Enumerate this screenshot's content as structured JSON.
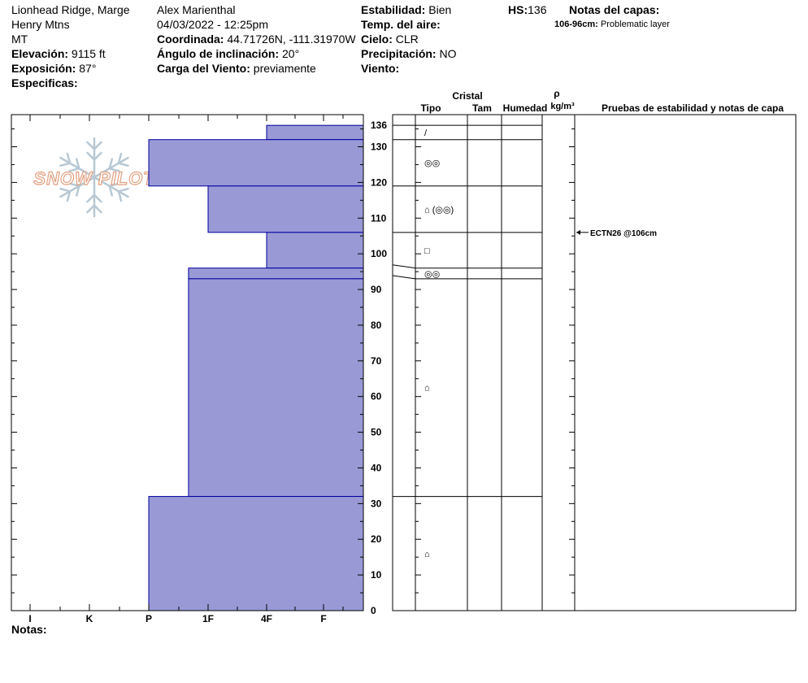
{
  "header": {
    "location": "Lionhead Ridge, Marge",
    "range": "Henry Mtns",
    "state": "MT",
    "elevation_label": "Elevación:",
    "elevation": "9115 ft",
    "aspect_label": "Exposición:",
    "aspect": "87°",
    "specifics_label": "Especificas:",
    "observer": "Alex Marienthal",
    "datetime": "04/03/2022 - 12:25pm",
    "coord_label": "Coordinada:",
    "coord": "44.71726N, -111.31970W",
    "slope_label": "Ángulo de inclinación:",
    "slope": "20°",
    "wind_load_label": "Carga del Viento:",
    "wind_load": "previamente",
    "stability_label": "Estabilidad:",
    "stability": "Bien",
    "air_temp_label": "Temp. del aire:",
    "air_temp": "",
    "sky_label": "Cielo:",
    "sky": "CLR",
    "precip_label": "Precipitación:",
    "precip": "NO",
    "wind_label": "Viento:",
    "wind": "",
    "hs_label": "HS:",
    "hs": "136",
    "layer_notes_label": "Notas del capas:",
    "layer_note_range": "106-96cm:",
    "layer_note_text": "Problematic layer"
  },
  "notes_label": "Notas:",
  "logo_text": "SNOW PILOT",
  "columns": {
    "cristal": "Cristal",
    "tipo": "Tipo",
    "tam": "Tam",
    "humedad": "Humedad",
    "rho": "ρ",
    "density_unit": "kg/m³",
    "tests": "Pruebas de estabilidad y notas de capa"
  },
  "colors": {
    "hardness_fill": "#9999d6",
    "hardness_stroke": "#0000a0",
    "logo": "#e0a080",
    "snowflake": "#b8c8d4"
  },
  "chart_data": {
    "type": "bar",
    "orientation": "horizontal-profile",
    "hardness_categories": [
      "I",
      "K",
      "P",
      "1F",
      "4F",
      "F"
    ],
    "depth_ticks": [
      0,
      10,
      20,
      30,
      40,
      50,
      60,
      70,
      80,
      90,
      100,
      110,
      120,
      130,
      136
    ],
    "ylim": [
      0,
      136
    ],
    "layers": [
      {
        "top": 136,
        "bottom": 132,
        "hardness": 4.0,
        "crystal": "/"
      },
      {
        "top": 132,
        "bottom": 119,
        "hardness": 2.0,
        "crystal": "◎◎"
      },
      {
        "top": 119,
        "bottom": 106,
        "hardness": 3.0,
        "crystal": "⌂ (◎◎)"
      },
      {
        "top": 106,
        "bottom": 96,
        "hardness": 4.0,
        "crystal": "□"
      },
      {
        "top": 96,
        "bottom": 93,
        "hardness": 2.67,
        "crystal": "◎◎"
      },
      {
        "top": 93,
        "bottom": 32,
        "hardness": 2.67,
        "crystal": "⌂"
      },
      {
        "top": 32,
        "bottom": 0,
        "hardness": 2.0,
        "crystal": "⌂"
      }
    ],
    "tests": [
      {
        "depth": 106,
        "label": "ECTN26 @106cm"
      }
    ]
  }
}
